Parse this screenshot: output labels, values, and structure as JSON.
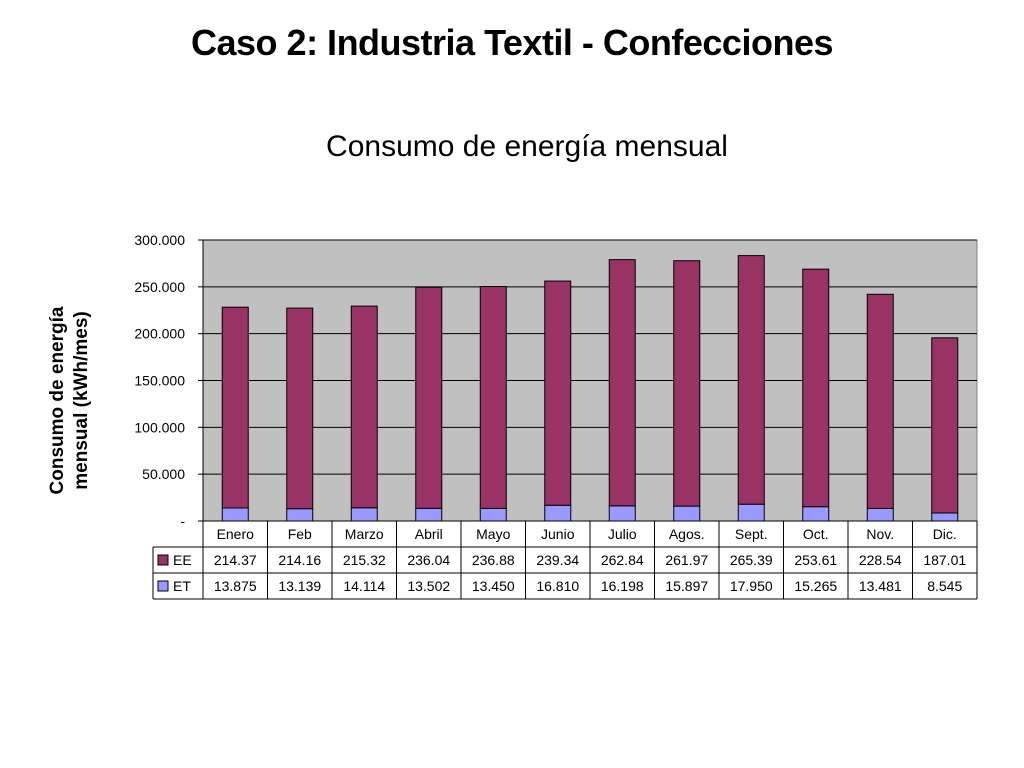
{
  "slide_title": "Caso 2: Industria Textil - Confecciones",
  "chart_data": {
    "type": "bar",
    "stacked": true,
    "title": "Consumo de energía mensual",
    "ylabel": "Consumo de energía mensual (kWh/mes)",
    "ylabel_lines": [
      "Consumo de energía",
      "mensual (kWh/mes)"
    ],
    "ylim": [
      0,
      300
    ],
    "yticks": [
      0,
      50,
      100,
      150,
      200,
      250,
      300
    ],
    "ytick_labels": [
      "-",
      "50.000",
      "100.000",
      "150.000",
      "200.000",
      "250.000",
      "300.000"
    ],
    "grid": true,
    "categories": [
      "Enero",
      "Feb",
      "Marzo",
      "Abril",
      "Mayo",
      "Junio",
      "Julio",
      "Agos.",
      "Sept.",
      "Oct.",
      "Nov.",
      "Dic."
    ],
    "series": [
      {
        "name": "ET",
        "color": "#9999ff",
        "values": [
          13.875,
          13.139,
          14.114,
          13.502,
          13.45,
          16.81,
          16.198,
          15.897,
          17.95,
          15.265,
          13.481,
          8.545
        ],
        "labels": [
          "13.875",
          "13.139",
          "14.114",
          "13.502",
          "13.450",
          "16.810",
          "16.198",
          "15.897",
          "17.950",
          "15.265",
          "13.481",
          "8.545"
        ]
      },
      {
        "name": "EE",
        "color": "#993366",
        "values": [
          214.37,
          214.16,
          215.32,
          236.04,
          236.88,
          239.34,
          262.84,
          261.97,
          265.39,
          253.61,
          228.54,
          187.01
        ],
        "labels": [
          "214.37",
          "214.16",
          "215.32",
          "236.04",
          "236.88",
          "239.34",
          "262.84",
          "261.97",
          "265.39",
          "253.61",
          "228.54",
          "187.01"
        ]
      }
    ],
    "table_order": [
      "EE",
      "ET"
    ],
    "plot_background": "#c0c0c0"
  }
}
